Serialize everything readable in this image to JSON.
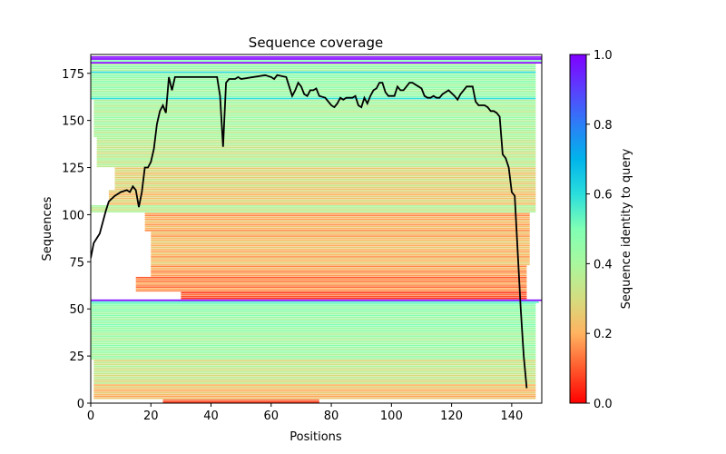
{
  "chart_data": {
    "type": "heatmap",
    "title": "Sequence coverage",
    "xlabel": "Positions",
    "ylabel": "Sequences",
    "xlim": [
      0,
      150
    ],
    "ylim": [
      0,
      185
    ],
    "xticks": [
      0,
      20,
      40,
      60,
      80,
      100,
      120,
      140
    ],
    "yticks": [
      0,
      25,
      50,
      75,
      100,
      125,
      150,
      175
    ],
    "grid": false,
    "colorbar": {
      "label": "Sequence identity to query",
      "colormap": "rainbow_r",
      "range": [
        0.0,
        1.0
      ],
      "ticks": [
        "0.0",
        "0.2",
        "0.4",
        "0.6",
        "0.8",
        "1.0"
      ],
      "stops": [
        "#ff0000",
        "#ff5a2d",
        "#ffb360",
        "#d4dd80",
        "#a9f79e",
        "#80ffb4",
        "#2adddd",
        "#00b4eb",
        "#2c7ef7",
        "#5a3ffd",
        "#8000ff"
      ]
    },
    "row_groups": [
      {
        "rows": [
          0,
          1
        ],
        "start": 24,
        "end": 76,
        "identity": 0.12
      },
      {
        "rows": [
          2,
          9
        ],
        "start": 1,
        "end": 148,
        "identity": 0.22
      },
      {
        "rows": [
          10,
          22
        ],
        "start": 1,
        "end": 148,
        "identity": 0.33
      },
      {
        "rows": [
          23,
          38
        ],
        "start": 0,
        "end": 148,
        "identity": 0.42
      },
      {
        "rows": [
          39,
          52
        ],
        "start": 0,
        "end": 148,
        "identity": 0.45
      },
      {
        "rows": [
          53,
          53
        ],
        "start": 0,
        "end": 149,
        "identity": 0.58
      },
      {
        "rows": [
          54,
          54
        ],
        "start": 0,
        "end": 150,
        "identity": 1.0
      },
      {
        "rows": [
          55,
          58
        ],
        "start": 30,
        "end": 145,
        "identity": 0.1
      },
      {
        "rows": [
          59,
          66
        ],
        "start": 15,
        "end": 145,
        "identity": 0.15
      },
      {
        "rows": [
          67,
          72
        ],
        "start": 20,
        "end": 145,
        "identity": 0.18
      },
      {
        "rows": [
          73,
          90
        ],
        "start": 20,
        "end": 146,
        "identity": 0.22
      },
      {
        "rows": [
          91,
          100
        ],
        "start": 18,
        "end": 146,
        "identity": 0.2
      },
      {
        "rows": [
          101,
          104
        ],
        "start": 0,
        "end": 148,
        "identity": 0.36
      },
      {
        "rows": [
          105,
          112
        ],
        "start": 6,
        "end": 148,
        "identity": 0.25
      },
      {
        "rows": [
          113,
          124
        ],
        "start": 8,
        "end": 148,
        "identity": 0.28
      },
      {
        "rows": [
          125,
          140
        ],
        "start": 2,
        "end": 148,
        "identity": 0.35
      },
      {
        "rows": [
          141,
          160
        ],
        "start": 1,
        "end": 148,
        "identity": 0.4
      },
      {
        "rows": [
          161,
          161
        ],
        "start": 0,
        "end": 148,
        "identity": 0.58
      },
      {
        "rows": [
          162,
          174
        ],
        "start": 0,
        "end": 148,
        "identity": 0.44
      },
      {
        "rows": [
          175,
          175
        ],
        "start": 0,
        "end": 148,
        "identity": 0.58
      },
      {
        "rows": [
          176,
          179
        ],
        "start": 0,
        "end": 148,
        "identity": 0.44
      },
      {
        "rows": [
          180,
          180
        ],
        "start": 0,
        "end": 150,
        "identity": 1.0
      },
      {
        "rows": [
          181,
          181
        ],
        "start": 0,
        "end": 150,
        "identity": 0.45
      },
      {
        "rows": [
          182,
          183
        ],
        "start": 0,
        "end": 150,
        "identity": 1.0
      }
    ],
    "coverage_line": {
      "name": "coverage",
      "color": "#000000",
      "x": [
        0,
        1,
        3,
        5,
        6,
        8,
        10,
        12,
        13,
        14,
        15,
        16,
        17,
        18,
        19,
        20,
        21,
        22,
        23,
        24,
        25,
        26,
        27,
        28,
        42,
        43,
        44,
        45,
        46,
        48,
        49,
        50,
        58,
        60,
        61,
        62,
        65,
        66,
        67,
        68,
        69,
        70,
        71,
        72,
        73,
        74,
        75,
        76,
        78,
        79,
        80,
        81,
        82,
        83,
        84,
        85,
        87,
        88,
        89,
        90,
        91,
        92,
        93,
        94,
        95,
        96,
        97,
        98,
        99,
        101,
        102,
        103,
        104,
        105,
        106,
        107,
        109,
        110,
        111,
        112,
        113,
        114,
        115,
        116,
        117,
        118,
        119,
        121,
        122,
        123,
        124,
        125,
        126,
        127,
        128,
        129,
        131,
        132,
        133,
        134,
        135,
        136,
        137,
        138,
        139,
        140,
        141,
        142,
        143,
        144,
        145
      ],
      "y": [
        77,
        85,
        90,
        102,
        107,
        110,
        112,
        113,
        112,
        115,
        113,
        104,
        112,
        125,
        125,
        128,
        135,
        148,
        155,
        158,
        154,
        173,
        166,
        173,
        173,
        163,
        136,
        170,
        172,
        172,
        173,
        172,
        174,
        173,
        172,
        174,
        173,
        168,
        163,
        166,
        170,
        168,
        164,
        163,
        166,
        166,
        167,
        163,
        162,
        160,
        158,
        157,
        159,
        162,
        161,
        162,
        162,
        163,
        158,
        157,
        162,
        159,
        163,
        166,
        167,
        170,
        170,
        165,
        163,
        163,
        168,
        166,
        166,
        168,
        170,
        170,
        168,
        167,
        163,
        162,
        162,
        163,
        162,
        162,
        164,
        165,
        166,
        163,
        161,
        164,
        166,
        168,
        168,
        168,
        160,
        158,
        158,
        157,
        155,
        155,
        154,
        152,
        132,
        130,
        125,
        112,
        110,
        80,
        50,
        25,
        8
      ]
    }
  }
}
